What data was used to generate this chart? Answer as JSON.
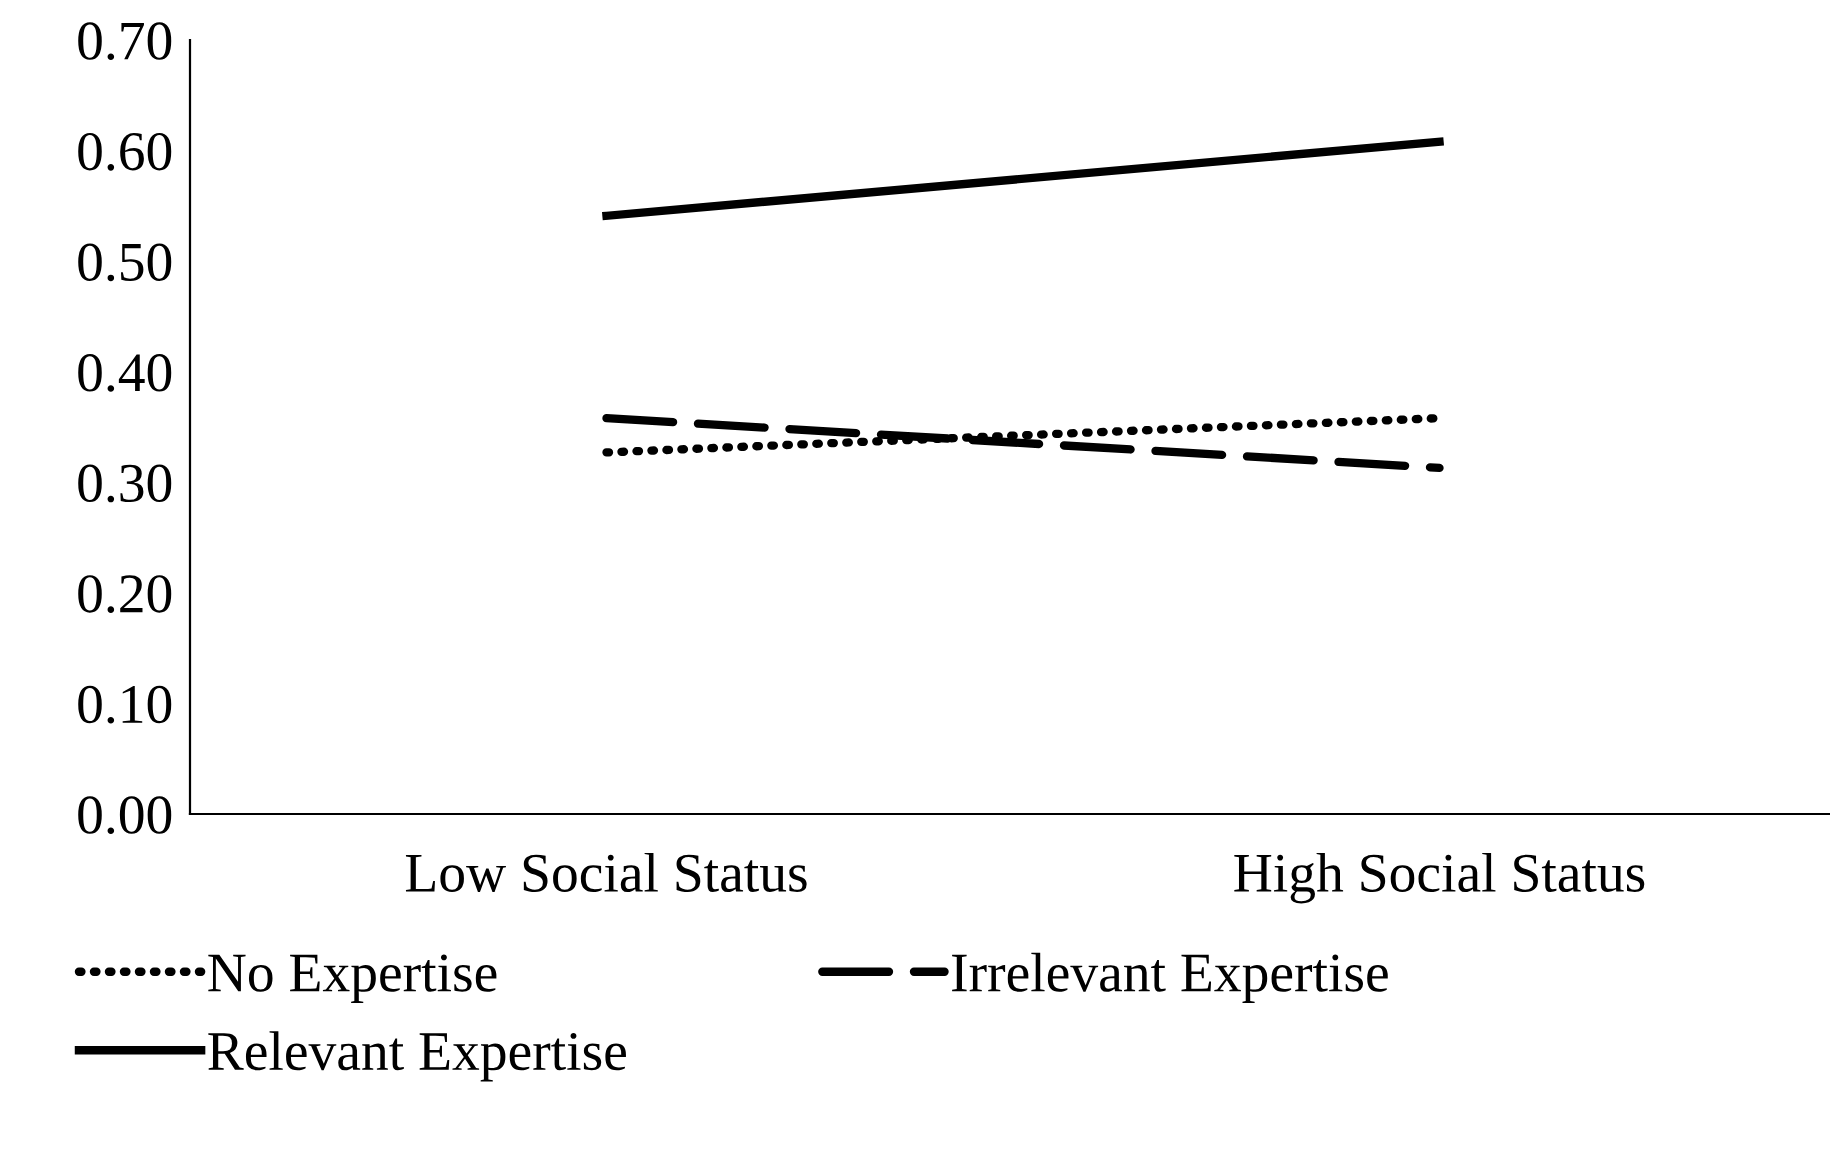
{
  "chart_data": {
    "type": "line",
    "categories": [
      "Low Social Status",
      "High Social Status"
    ],
    "series": [
      {
        "name": "No Expertise",
        "color": "#000000",
        "line_style": "dotted",
        "values": [
          0.327,
          0.358
        ]
      },
      {
        "name": "Irrelevant Expertise",
        "color": "#000000",
        "line_style": "dashed",
        "values": [
          0.358,
          0.313
        ]
      },
      {
        "name": "Relevant Expertise",
        "color": "#000000",
        "line_style": "solid",
        "values": [
          0.541,
          0.608
        ]
      }
    ],
    "ylim": [
      0,
      0.7
    ],
    "yticks": [
      {
        "value": 0,
        "label": "0.00"
      },
      {
        "value": 0.1,
        "label": "0.10"
      },
      {
        "value": 0.2,
        "label": "0.20"
      },
      {
        "value": 0.3,
        "label": "0.30"
      },
      {
        "value": 0.4,
        "label": "0.40"
      },
      {
        "value": 0.5,
        "label": "0.50"
      },
      {
        "value": 0.6,
        "label": "0.60"
      },
      {
        "value": 0.7,
        "label": "0.70"
      }
    ],
    "grid": false,
    "legend": "bottom",
    "marker": "none"
  }
}
